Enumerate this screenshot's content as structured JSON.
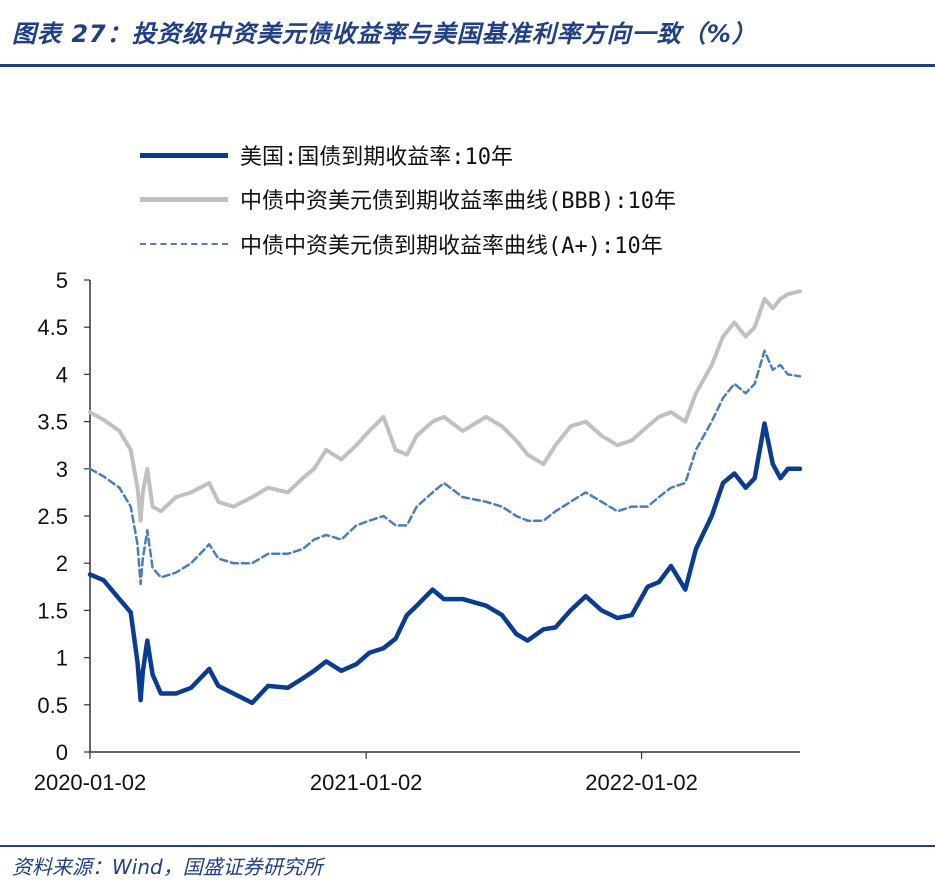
{
  "header": {
    "figure_title": "图表 27：投资级中资美元债收益率与美国基准利率方向一致（%）"
  },
  "footer": {
    "source": "资料来源：Wind，国盛证券研究所"
  },
  "colors": {
    "brand": "#1f3f87",
    "us_treasury": "#0a3d91",
    "bbb": "#c0c0c0",
    "a_plus": "#4a7cc0"
  },
  "chart_data": {
    "type": "line",
    "title": "",
    "xlabel": "",
    "ylabel": "",
    "ylim": [
      0,
      5
    ],
    "yticks": [
      "0",
      "0.5",
      "1",
      "1.5",
      "2",
      "2.5",
      "3",
      "3.5",
      "4",
      "4.5",
      "5"
    ],
    "xticks": [
      "2020-01-02",
      "2021-01-02",
      "2022-01-02"
    ],
    "xlim": [
      "2020-01-02",
      "2022-07-31"
    ],
    "grid": false,
    "legend_position": "top",
    "series": [
      {
        "name": "美国:国债到期收益率:10年",
        "style": "solid-thick",
        "x": [
          "2020-01-02",
          "2020-01-20",
          "2020-02-10",
          "2020-02-25",
          "2020-03-05",
          "2020-03-09",
          "2020-03-12",
          "2020-03-18",
          "2020-03-25",
          "2020-04-05",
          "2020-04-25",
          "2020-05-15",
          "2020-06-08",
          "2020-06-20",
          "2020-07-10",
          "2020-08-04",
          "2020-08-25",
          "2020-09-20",
          "2020-10-10",
          "2020-10-25",
          "2020-11-10",
          "2020-11-30",
          "2020-12-20",
          "2021-01-06",
          "2021-01-25",
          "2021-02-10",
          "2021-02-25",
          "2021-03-10",
          "2021-03-31",
          "2021-04-15",
          "2021-05-10",
          "2021-06-10",
          "2021-07-01",
          "2021-07-20",
          "2021-08-04",
          "2021-08-25",
          "2021-09-10",
          "2021-09-30",
          "2021-10-20",
          "2021-11-10",
          "2021-12-01",
          "2021-12-20",
          "2022-01-10",
          "2022-01-25",
          "2022-02-10",
          "2022-03-01",
          "2022-03-15",
          "2022-04-05",
          "2022-04-20",
          "2022-05-05",
          "2022-05-20",
          "2022-06-01",
          "2022-06-14",
          "2022-06-25",
          "2022-07-05",
          "2022-07-15",
          "2022-07-31"
        ],
        "values": [
          1.88,
          1.82,
          1.62,
          1.48,
          0.95,
          0.55,
          0.85,
          1.18,
          0.82,
          0.62,
          0.62,
          0.68,
          0.88,
          0.7,
          0.62,
          0.52,
          0.7,
          0.68,
          0.78,
          0.86,
          0.96,
          0.86,
          0.93,
          1.05,
          1.1,
          1.2,
          1.45,
          1.55,
          1.72,
          1.62,
          1.62,
          1.55,
          1.45,
          1.25,
          1.18,
          1.3,
          1.32,
          1.5,
          1.65,
          1.5,
          1.42,
          1.45,
          1.75,
          1.8,
          1.97,
          1.72,
          2.15,
          2.5,
          2.85,
          2.95,
          2.8,
          2.9,
          3.48,
          3.05,
          2.9,
          3.0,
          3.0
        ]
      },
      {
        "name": "中债中资美元债到期收益率曲线(BBB):10年",
        "style": "solid-light",
        "x": [
          "2020-01-02",
          "2020-01-20",
          "2020-02-10",
          "2020-02-25",
          "2020-03-05",
          "2020-03-09",
          "2020-03-12",
          "2020-03-18",
          "2020-03-25",
          "2020-04-05",
          "2020-04-25",
          "2020-05-15",
          "2020-06-08",
          "2020-06-20",
          "2020-07-10",
          "2020-08-04",
          "2020-08-25",
          "2020-09-20",
          "2020-10-10",
          "2020-10-25",
          "2020-11-10",
          "2020-11-30",
          "2020-12-20",
          "2021-01-06",
          "2021-01-25",
          "2021-02-10",
          "2021-02-25",
          "2021-03-10",
          "2021-03-31",
          "2021-04-15",
          "2021-05-10",
          "2021-06-10",
          "2021-07-01",
          "2021-07-20",
          "2021-08-04",
          "2021-08-25",
          "2021-09-10",
          "2021-09-30",
          "2021-10-20",
          "2021-11-10",
          "2021-12-01",
          "2021-12-20",
          "2022-01-10",
          "2022-01-25",
          "2022-02-10",
          "2022-03-01",
          "2022-03-15",
          "2022-04-05",
          "2022-04-20",
          "2022-05-05",
          "2022-05-20",
          "2022-06-01",
          "2022-06-14",
          "2022-06-25",
          "2022-07-05",
          "2022-07-15",
          "2022-07-31"
        ],
        "values": [
          3.6,
          3.52,
          3.4,
          3.2,
          2.8,
          2.45,
          2.75,
          3.0,
          2.6,
          2.55,
          2.7,
          2.75,
          2.85,
          2.65,
          2.6,
          2.7,
          2.8,
          2.75,
          2.9,
          3.0,
          3.2,
          3.1,
          3.25,
          3.4,
          3.55,
          3.2,
          3.15,
          3.35,
          3.5,
          3.55,
          3.4,
          3.55,
          3.45,
          3.3,
          3.15,
          3.05,
          3.25,
          3.45,
          3.5,
          3.35,
          3.25,
          3.3,
          3.45,
          3.55,
          3.6,
          3.5,
          3.8,
          4.1,
          4.4,
          4.55,
          4.4,
          4.5,
          4.8,
          4.7,
          4.8,
          4.85,
          4.88
        ]
      },
      {
        "name": "中债中资美元债到期收益率曲线(A+):10年",
        "style": "dashed",
        "x": [
          "2020-01-02",
          "2020-01-20",
          "2020-02-10",
          "2020-02-25",
          "2020-03-05",
          "2020-03-09",
          "2020-03-12",
          "2020-03-18",
          "2020-03-25",
          "2020-04-05",
          "2020-04-25",
          "2020-05-15",
          "2020-06-08",
          "2020-06-20",
          "2020-07-10",
          "2020-08-04",
          "2020-08-25",
          "2020-09-20",
          "2020-10-10",
          "2020-10-25",
          "2020-11-10",
          "2020-11-30",
          "2020-12-20",
          "2021-01-06",
          "2021-01-25",
          "2021-02-10",
          "2021-02-25",
          "2021-03-10",
          "2021-03-31",
          "2021-04-15",
          "2021-05-10",
          "2021-06-10",
          "2021-07-01",
          "2021-07-20",
          "2021-08-04",
          "2021-08-25",
          "2021-09-10",
          "2021-09-30",
          "2021-10-20",
          "2021-11-10",
          "2021-12-01",
          "2021-12-20",
          "2022-01-10",
          "2022-01-25",
          "2022-02-10",
          "2022-03-01",
          "2022-03-15",
          "2022-04-05",
          "2022-04-20",
          "2022-05-05",
          "2022-05-20",
          "2022-06-01",
          "2022-06-14",
          "2022-06-25",
          "2022-07-05",
          "2022-07-15",
          "2022-07-31"
        ],
        "values": [
          3.0,
          2.92,
          2.8,
          2.6,
          2.2,
          1.78,
          2.05,
          2.35,
          1.95,
          1.85,
          1.9,
          2.0,
          2.2,
          2.05,
          2.0,
          2.0,
          2.1,
          2.1,
          2.15,
          2.25,
          2.3,
          2.25,
          2.4,
          2.45,
          2.5,
          2.4,
          2.4,
          2.6,
          2.75,
          2.85,
          2.7,
          2.65,
          2.6,
          2.5,
          2.45,
          2.45,
          2.55,
          2.65,
          2.75,
          2.65,
          2.55,
          2.6,
          2.6,
          2.7,
          2.8,
          2.85,
          3.2,
          3.5,
          3.75,
          3.9,
          3.8,
          3.9,
          4.25,
          4.05,
          4.1,
          4.0,
          3.98
        ]
      }
    ]
  }
}
